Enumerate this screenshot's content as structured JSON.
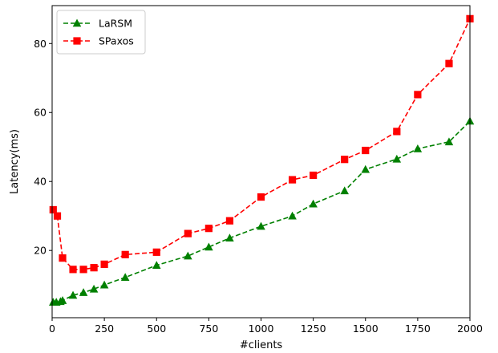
{
  "chart_data": {
    "type": "line",
    "xlabel": "#clients",
    "ylabel": "Latency(ms)",
    "xlim": [
      0,
      2000
    ],
    "ylim": [
      0.5,
      91
    ],
    "xticks": [
      0,
      250,
      500,
      750,
      1000,
      1250,
      1500,
      1750,
      2000
    ],
    "xtick_labels": [
      "0",
      "250",
      "500",
      "750",
      "1000",
      "1250",
      "1500",
      "1750",
      "2000"
    ],
    "yticks": [
      20,
      40,
      60,
      80
    ],
    "ytick_labels": [
      "20",
      "40",
      "60",
      "80"
    ],
    "grid": false,
    "legend_position": "top-left",
    "series": [
      {
        "name": "LaRSM",
        "color": "#008000",
        "marker": "triangle",
        "line_style": "dashed",
        "x": [
          5,
          20,
          40,
          50,
          100,
          150,
          200,
          250,
          350,
          500,
          650,
          750,
          850,
          1000,
          1150,
          1250,
          1400,
          1500,
          1650,
          1750,
          1900,
          2000
        ],
        "y": [
          5.0,
          5.0,
          5.2,
          5.5,
          7.0,
          7.8,
          8.8,
          10.0,
          12.2,
          15.7,
          18.4,
          21.0,
          23.6,
          27.0,
          30.0,
          33.5,
          37.3,
          43.5,
          46.5,
          49.5,
          51.5,
          57.5
        ]
      },
      {
        "name": "SPaxos",
        "color": "#ff0000",
        "marker": "square",
        "line_style": "dashed",
        "x": [
          5,
          25,
          50,
          100,
          150,
          200,
          250,
          350,
          500,
          650,
          750,
          850,
          1000,
          1150,
          1250,
          1400,
          1500,
          1650,
          1750,
          1900,
          2000
        ],
        "y": [
          31.8,
          30.0,
          17.8,
          14.5,
          14.5,
          15.0,
          16.0,
          18.8,
          19.5,
          24.9,
          26.4,
          28.6,
          35.5,
          40.5,
          41.8,
          46.4,
          49.0,
          54.5,
          65.2,
          74.2,
          87.2
        ]
      }
    ]
  }
}
